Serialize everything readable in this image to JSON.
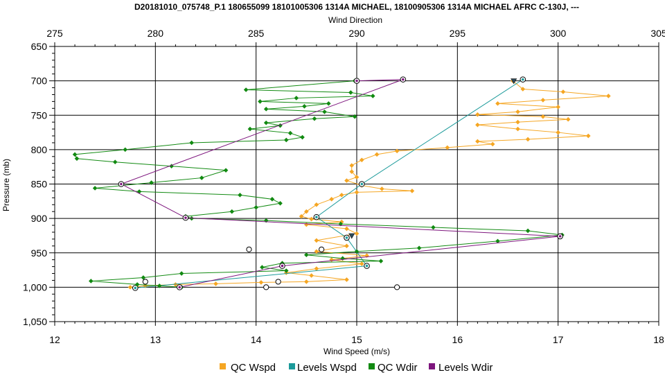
{
  "chart_data": {
    "type": "scatter",
    "title": "D20181010_075748_P.1 180655099 18101005306 1314A MICHAEL, 18100905306 1314A MICHAEL AFRC C-130J, ---",
    "x_top_label": "Wind Direction",
    "x_bottom_label": "Wind Speed (m/s)",
    "ylabel": "Pressure (mb)",
    "x_top_range": [
      275,
      305
    ],
    "x_top_ticks": [
      "275",
      "280",
      "285",
      "290",
      "295",
      "300",
      "305"
    ],
    "x_bottom_range": [
      12,
      18
    ],
    "x_bottom_ticks": [
      "12",
      "13",
      "14",
      "15",
      "16",
      "17",
      "18"
    ],
    "y_range": [
      650,
      1050
    ],
    "y_reversed": true,
    "y_ticks": [
      "650",
      "700",
      "750",
      "800",
      "850",
      "900",
      "950",
      "1,000",
      "1,050"
    ],
    "grid": true,
    "legend_position": "bottom",
    "series": [
      {
        "name": "QC Wspd",
        "axis": "bottom",
        "color": "#f5a623",
        "marker": "diamond",
        "points": [
          [
            16.55,
            700
          ],
          [
            16.65,
            712
          ],
          [
            17.05,
            716
          ],
          [
            17.5,
            722
          ],
          [
            16.85,
            728
          ],
          [
            16.4,
            733
          ],
          [
            17.0,
            738
          ],
          [
            16.6,
            745
          ],
          [
            16.2,
            749
          ],
          [
            16.85,
            752
          ],
          [
            17.1,
            756
          ],
          [
            16.6,
            760
          ],
          [
            16.2,
            764
          ],
          [
            16.6,
            770
          ],
          [
            17.0,
            775
          ],
          [
            17.3,
            780
          ],
          [
            16.7,
            785
          ],
          [
            16.2,
            788
          ],
          [
            16.35,
            792
          ],
          [
            15.9,
            797
          ],
          [
            15.4,
            802
          ],
          [
            15.2,
            807
          ],
          [
            15.05,
            815
          ],
          [
            14.95,
            823
          ],
          [
            14.95,
            832
          ],
          [
            15.0,
            840
          ],
          [
            14.9,
            845
          ],
          [
            15.05,
            852
          ],
          [
            15.25,
            857
          ],
          [
            15.55,
            860
          ],
          [
            15.0,
            862
          ],
          [
            14.85,
            866
          ],
          [
            14.75,
            872
          ],
          [
            14.6,
            880
          ],
          [
            14.5,
            890
          ],
          [
            14.45,
            897
          ],
          [
            14.55,
            901
          ],
          [
            14.85,
            905
          ],
          [
            14.5,
            909
          ],
          [
            14.9,
            915
          ],
          [
            15.0,
            922
          ],
          [
            14.6,
            932
          ],
          [
            14.9,
            940
          ],
          [
            14.6,
            948
          ],
          [
            15.1,
            954
          ],
          [
            14.75,
            960
          ],
          [
            15.05,
            966
          ],
          [
            14.6,
            973
          ],
          [
            14.3,
            979
          ],
          [
            14.55,
            983
          ],
          [
            14.9,
            989
          ],
          [
            14.5,
            992
          ],
          [
            14.05,
            993
          ],
          [
            13.6,
            995
          ],
          [
            13.2,
            996
          ],
          [
            12.9,
            998
          ],
          [
            12.75,
            1000
          ]
        ]
      },
      {
        "name": "Levels Wspd",
        "axis": "bottom",
        "color": "#1b9a9a",
        "marker": "circle-cross",
        "points": [
          [
            16.65,
            698
          ],
          [
            15.05,
            850
          ],
          [
            14.6,
            898
          ],
          [
            14.9,
            928
          ],
          [
            15.1,
            969
          ],
          [
            12.8,
            1001
          ]
        ]
      },
      {
        "name": "QC Wdir",
        "axis": "top",
        "color": "#128a12",
        "marker": "diamond",
        "points": [
          [
            289.9,
            700
          ],
          [
            284.5,
            713
          ],
          [
            289.7,
            717
          ],
          [
            290.8,
            722
          ],
          [
            287.0,
            725
          ],
          [
            285.2,
            730
          ],
          [
            288.6,
            733
          ],
          [
            287.4,
            737
          ],
          [
            285.5,
            741
          ],
          [
            288.4,
            745
          ],
          [
            289.9,
            752
          ],
          [
            287.9,
            755
          ],
          [
            285.5,
            761
          ],
          [
            286.2,
            765
          ],
          [
            284.7,
            770
          ],
          [
            286.7,
            776
          ],
          [
            287.3,
            782
          ],
          [
            286.5,
            786
          ],
          [
            281.8,
            790
          ],
          [
            278.5,
            800
          ],
          [
            276.0,
            807
          ],
          [
            276.1,
            813
          ],
          [
            278.0,
            818
          ],
          [
            280.8,
            824
          ],
          [
            283.5,
            830
          ],
          [
            282.3,
            841
          ],
          [
            279.8,
            848
          ],
          [
            277.0,
            856
          ],
          [
            279.2,
            861
          ],
          [
            284.2,
            866
          ],
          [
            285.8,
            872
          ],
          [
            286.2,
            878
          ],
          [
            285.0,
            884
          ],
          [
            283.8,
            890
          ],
          [
            281.5,
            897
          ],
          [
            281.8,
            900
          ],
          [
            285.5,
            903
          ],
          [
            289.2,
            908
          ],
          [
            293.8,
            913
          ],
          [
            298.5,
            918
          ],
          [
            300.2,
            924
          ],
          [
            297.0,
            933
          ],
          [
            293.1,
            943
          ],
          [
            290.0,
            948
          ],
          [
            287.5,
            953
          ],
          [
            289.3,
            958
          ],
          [
            291.2,
            962
          ],
          [
            286.3,
            965
          ],
          [
            285.3,
            971
          ],
          [
            286.5,
            976
          ],
          [
            281.3,
            980
          ],
          [
            279.4,
            986
          ],
          [
            276.8,
            991
          ],
          [
            279.1,
            996
          ],
          [
            280.2,
            998
          ],
          [
            281.3,
            1000
          ]
        ]
      },
      {
        "name": "Levels Wdir",
        "axis": "top",
        "color": "#7d157d",
        "marker": "triangle-down",
        "points": [
          [
            290.0,
            700
          ],
          [
            292.3,
            698
          ],
          [
            278.3,
            850
          ],
          [
            281.5,
            899
          ],
          [
            300.1,
            926
          ],
          [
            286.3,
            969
          ],
          [
            281.2,
            1000
          ]
        ]
      }
    ],
    "extra_markers": [
      {
        "axis": "bottom",
        "x": 13.93,
        "y": 945,
        "shape": "circle"
      },
      {
        "axis": "bottom",
        "x": 14.65,
        "y": 945,
        "shape": "circle"
      },
      {
        "axis": "bottom",
        "x": 12.9,
        "y": 992,
        "shape": "circle"
      },
      {
        "axis": "bottom",
        "x": 14.22,
        "y": 992,
        "shape": "circle"
      },
      {
        "axis": "bottom",
        "x": 14.1,
        "y": 1000,
        "shape": "circle"
      },
      {
        "axis": "bottom",
        "x": 15.4,
        "y": 1000,
        "shape": "circle"
      },
      {
        "axis": "bottom",
        "x": 14.95,
        "y": 925,
        "shape": "triangle-down"
      },
      {
        "axis": "top",
        "x": 297.8,
        "y": 700,
        "shape": "triangle-down"
      }
    ]
  }
}
